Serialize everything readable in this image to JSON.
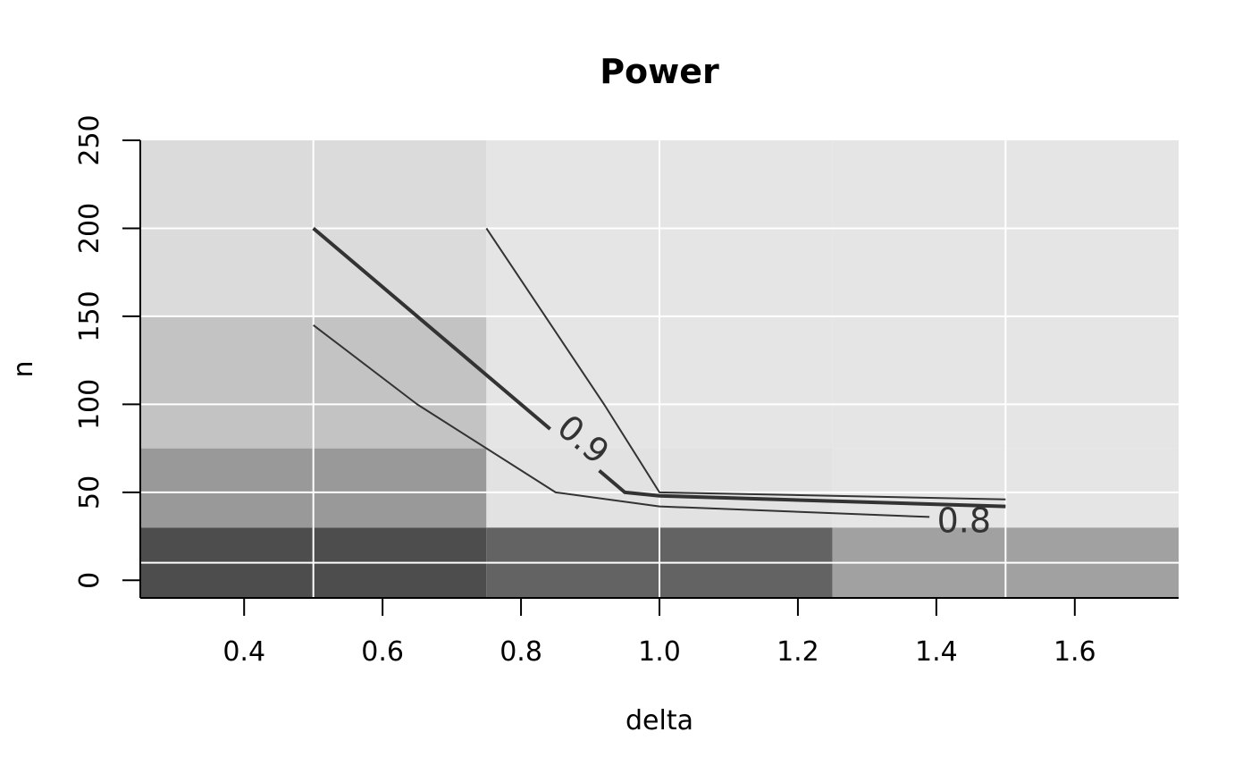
{
  "chart_data": {
    "type": "heatmap",
    "title": "Power",
    "xlabel": "delta",
    "ylabel": "n",
    "xlim": [
      0.25,
      1.75
    ],
    "ylim": [
      -10,
      250
    ],
    "x_ticks": [
      "0.4",
      "0.6",
      "0.8",
      "1.0",
      "1.2",
      "1.4",
      "1.6"
    ],
    "y_ticks": [
      "0",
      "50",
      "100",
      "150",
      "200",
      "250"
    ],
    "grid": true,
    "grid_x": [
      0.5,
      1.0,
      1.5
    ],
    "grid_y": [
      10,
      50,
      100,
      150,
      200
    ],
    "grid_color": "#ffffff",
    "x_cells": [
      0.25,
      0.75,
      1.25,
      1.75
    ],
    "y_cells": [
      -10,
      30,
      75,
      150,
      250
    ],
    "tile_colors": [
      [
        "#4d4d4d",
        "#636363",
        "#a1a1a1"
      ],
      [
        "#999999",
        "#e2e2e2",
        "#e5e5e5"
      ],
      [
        "#c3c3c3",
        "#e5e5e5",
        "#e5e5e5"
      ],
      [
        "#dbdbdb",
        "#e5e5e5",
        "#e5e5e5"
      ]
    ],
    "contour_color": "#333333",
    "contours": [
      {
        "level": "0.9",
        "width": "thick",
        "points": [
          [
            0.5,
            200
          ],
          [
            0.95,
            50
          ],
          [
            1.0,
            48
          ],
          [
            1.5,
            42
          ]
        ],
        "label_at": [
          0.89,
          80
        ],
        "label_angle": 40
      },
      {
        "level": "0.8",
        "width": "thin",
        "points": [
          [
            0.5,
            145
          ],
          [
            0.65,
            100
          ],
          [
            0.85,
            50
          ],
          [
            1.0,
            42
          ],
          [
            1.39,
            36
          ]
        ],
        "label_at": [
          1.44,
          34
        ],
        "label_angle": 0
      },
      {
        "level": "",
        "width": "thin",
        "points": [
          [
            0.75,
            200
          ],
          [
            0.92,
            100
          ],
          [
            1.0,
            50
          ],
          [
            1.5,
            46
          ]
        ],
        "label_at": null,
        "label_angle": 0
      }
    ]
  }
}
